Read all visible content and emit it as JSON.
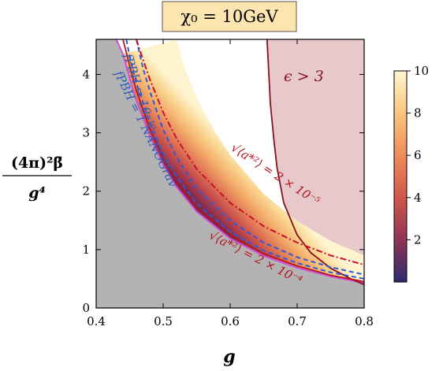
{
  "chart_data": {
    "type": "area",
    "title": "χ₀ = 10GeV",
    "xlabel": "g",
    "ylabel_num": "(4π)²β̄",
    "ylabel_den": "g⁴",
    "xlim": [
      0.4,
      0.8
    ],
    "ylim": [
      0,
      4.6
    ],
    "xticks": [
      "0.4",
      "0.5",
      "0.6",
      "0.7",
      "0.8"
    ],
    "yticks": [
      "0",
      "1",
      "2",
      "3",
      "4"
    ],
    "colorbar": {
      "range": [
        0,
        10
      ],
      "ticks": [
        "2",
        "4",
        "6",
        "8",
        "10"
      ],
      "colors": [
        "#2e2a6e",
        "#8e3556",
        "#d0564a",
        "#ef8d5b",
        "#f8c57f",
        "#fff6d2"
      ]
    },
    "excluded_grey": {
      "x": [
        0.4,
        0.41,
        0.42,
        0.43,
        0.44,
        0.45,
        0.46,
        0.48,
        0.5,
        0.52,
        0.55,
        0.6,
        0.65,
        0.7,
        0.75,
        0.8
      ],
      "y": [
        4.6,
        4.6,
        4.6,
        4.6,
        4.35,
        3.93,
        3.55,
        2.95,
        2.45,
        2.07,
        1.65,
        1.19,
        0.89,
        0.69,
        0.54,
        0.43
      ]
    },
    "colored_band": {
      "lower": {
        "x": [
          0.44,
          0.45,
          0.46,
          0.48,
          0.5,
          0.52,
          0.55,
          0.6,
          0.65,
          0.7,
          0.75,
          0.8
        ],
        "y": [
          4.35,
          3.93,
          3.55,
          2.95,
          2.45,
          2.07,
          1.65,
          1.19,
          0.89,
          0.69,
          0.54,
          0.43
        ]
      },
      "upper": {
        "x": [
          0.52,
          0.53,
          0.55,
          0.58,
          0.6,
          0.65,
          0.7,
          0.75,
          0.8
        ],
        "y": [
          4.6,
          4.18,
          3.6,
          2.97,
          2.62,
          1.95,
          1.49,
          1.15,
          0.9
        ]
      }
    },
    "epsilon_region": {
      "label": "ϵ > 3",
      "boundary_x": [
        0.655,
        0.66,
        0.665,
        0.67,
        0.68,
        0.7,
        0.72,
        0.75,
        0.78,
        0.8
      ],
      "boundary_y": [
        4.6,
        3.5,
        2.9,
        2.4,
        1.8,
        1.25,
        0.95,
        0.68,
        0.5,
        0.4
      ]
    },
    "series": [
      {
        "name": "f_PBH = 10⁻¹⁰",
        "style": "dashed-blue",
        "x": [
          0.46,
          0.47,
          0.48,
          0.5,
          0.52,
          0.55,
          0.6,
          0.65,
          0.7,
          0.75,
          0.8
        ],
        "y": [
          4.6,
          4.1,
          3.72,
          3.05,
          2.58,
          2.05,
          1.5,
          1.12,
          0.87,
          0.7,
          0.57
        ]
      },
      {
        "name": "f_PBH = 1 NANOGrav",
        "style": "dashed-blue",
        "x": [
          0.445,
          0.45,
          0.46,
          0.48,
          0.5,
          0.52,
          0.55,
          0.6,
          0.65,
          0.7,
          0.75,
          0.8
        ],
        "y": [
          4.6,
          4.3,
          3.85,
          3.18,
          2.65,
          2.24,
          1.79,
          1.3,
          0.98,
          0.77,
          0.61,
          0.5
        ]
      },
      {
        "name": "√⟨a*²⟩ = 2 × 10⁻⁵",
        "style": "dashdot-red",
        "x": [
          0.46,
          0.47,
          0.48,
          0.5,
          0.52,
          0.55,
          0.6,
          0.65,
          0.7,
          0.75,
          0.8
        ],
        "y": [
          4.6,
          4.25,
          3.92,
          3.35,
          2.9,
          2.38,
          1.8,
          1.4,
          1.12,
          0.9,
          0.74
        ]
      },
      {
        "name": "√⟨a*²⟩ = 2 × 10⁻⁴",
        "style": "solid-red",
        "x": [
          0.44,
          0.45,
          0.46,
          0.48,
          0.5,
          0.52,
          0.55,
          0.6,
          0.65,
          0.7,
          0.75,
          0.8
        ],
        "y": [
          4.6,
          4.15,
          3.72,
          3.08,
          2.57,
          2.17,
          1.73,
          1.25,
          0.93,
          0.72,
          0.56,
          0.45
        ]
      }
    ],
    "annotations": {
      "fpbh_upper": "fPBH = 10⁻¹⁰",
      "fpbh_lower": "fPBH = 1 NANOGrav",
      "a_upper": "√⟨a*²⟩ = 2 × 10⁻⁵",
      "a_lower": "√⟨a*²⟩ = 2 × 10⁻⁴"
    }
  }
}
